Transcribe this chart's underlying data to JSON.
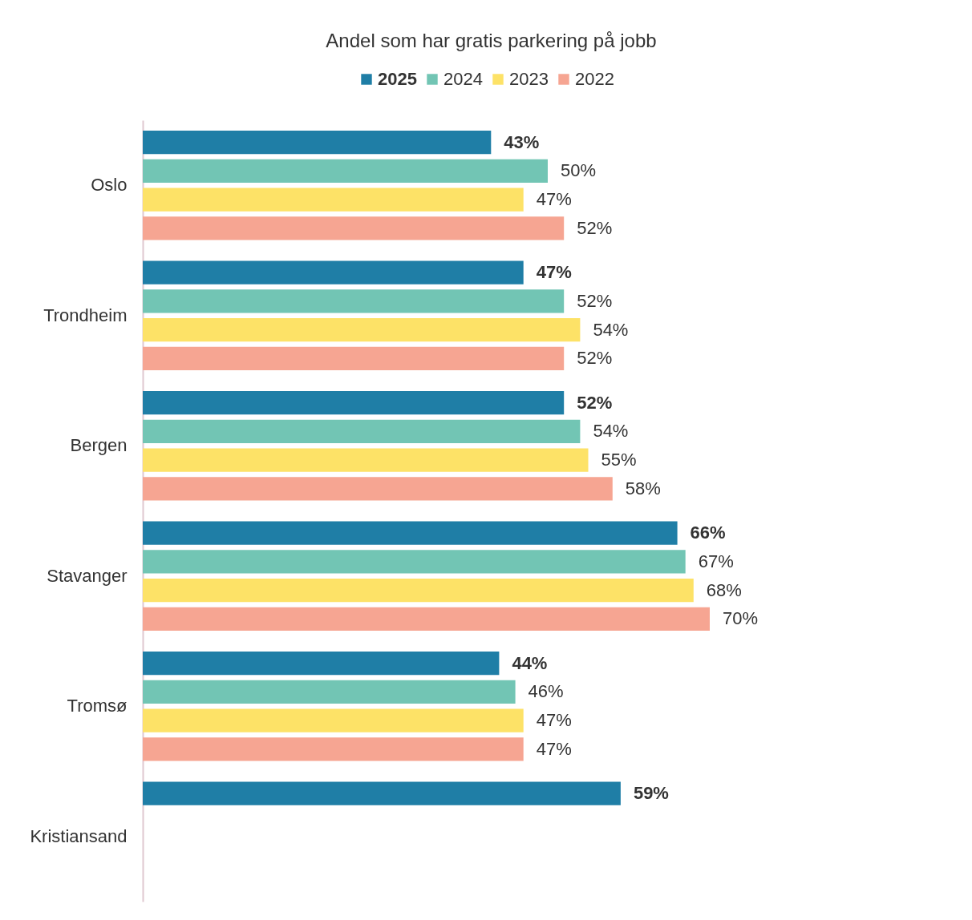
{
  "chart_data": {
    "type": "bar",
    "orientation": "horizontal",
    "title": "Andel som har gratis parkering på jobb",
    "categories": [
      "Oslo",
      "Trondheim",
      "Bergen",
      "Stavanger",
      "Tromsø",
      "Kristiansand"
    ],
    "series": [
      {
        "name": "2025",
        "color": "#1f7ea6",
        "values": [
          43,
          47,
          52,
          66,
          44,
          59
        ],
        "value_labels": [
          "43%",
          "47%",
          "52%",
          "66%",
          "44%",
          "59%"
        ]
      },
      {
        "name": "2024",
        "color": "#72c5b4",
        "values": [
          50,
          52,
          54,
          67,
          46,
          null
        ],
        "value_labels": [
          "50%",
          "52%",
          "54%",
          "67%",
          "46%",
          null
        ]
      },
      {
        "name": "2023",
        "color": "#fde267",
        "values": [
          47,
          54,
          55,
          68,
          47,
          null
        ],
        "value_labels": [
          "47%",
          "54%",
          "55%",
          "68%",
          "47%",
          null
        ]
      },
      {
        "name": "2022",
        "color": "#f6a592",
        "values": [
          52,
          52,
          58,
          70,
          47,
          null
        ],
        "value_labels": [
          "52%",
          "52%",
          "58%",
          "70%",
          "47%",
          null
        ]
      }
    ],
    "legend": "top"
  }
}
